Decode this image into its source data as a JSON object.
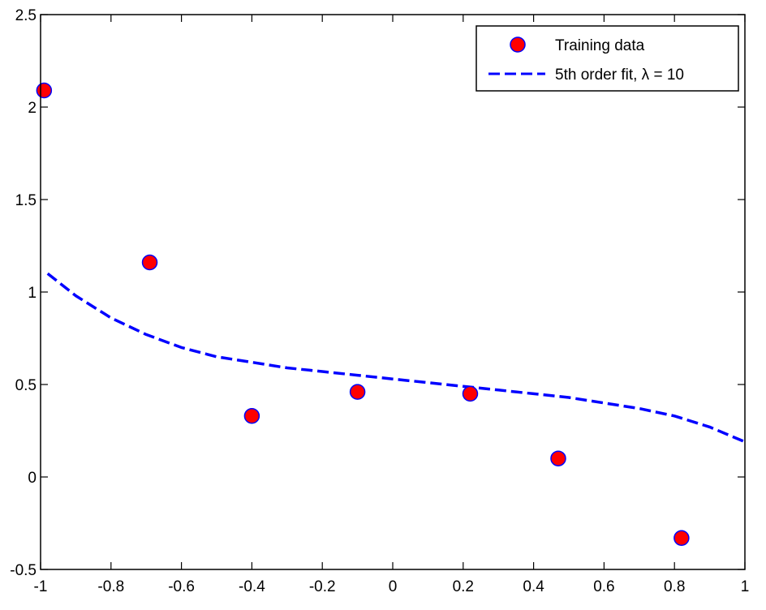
{
  "chart_data": {
    "type": "scatter",
    "title": "",
    "xlabel": "",
    "ylabel": "",
    "xlim": [
      -1,
      1
    ],
    "ylim": [
      -0.5,
      2.5
    ],
    "xticks": [
      -1,
      -0.8,
      -0.6,
      -0.4,
      -0.2,
      0,
      0.2,
      0.4,
      0.6,
      0.8,
      1
    ],
    "xtick_labels": [
      "-1",
      "-0.8",
      "-0.6",
      "-0.4",
      "-0.2",
      "0",
      "0.2",
      "0.4",
      "0.6",
      "0.8",
      "1"
    ],
    "yticks": [
      -0.5,
      0,
      0.5,
      1,
      1.5,
      2,
      2.5
    ],
    "ytick_labels": [
      "-0.5",
      "0",
      "0.5",
      "1",
      "1.5",
      "2",
      "2.5"
    ],
    "grid": false,
    "legend_position": "top-right",
    "series": [
      {
        "name": "Training data",
        "kind": "scatter",
        "marker_fill": "#ff0000",
        "marker_edge": "#0000ff",
        "x": [
          -0.99,
          -0.69,
          -0.4,
          -0.1,
          0.22,
          0.47,
          0.82
        ],
        "y": [
          2.09,
          1.16,
          0.33,
          0.46,
          0.45,
          0.1,
          -0.33
        ]
      },
      {
        "name": "5th order fit, λ = 10",
        "kind": "line",
        "style": "dashed",
        "color": "#0000ff",
        "x": [
          -0.98,
          -0.9,
          -0.8,
          -0.7,
          -0.6,
          -0.5,
          -0.4,
          -0.3,
          -0.2,
          -0.1,
          0,
          0.1,
          0.2,
          0.3,
          0.4,
          0.5,
          0.6,
          0.7,
          0.8,
          0.9,
          1
        ],
        "y": [
          1.1,
          0.98,
          0.86,
          0.77,
          0.7,
          0.65,
          0.62,
          0.59,
          0.57,
          0.55,
          0.53,
          0.51,
          0.49,
          0.47,
          0.45,
          0.43,
          0.4,
          0.37,
          0.33,
          0.27,
          0.19
        ]
      }
    ]
  }
}
